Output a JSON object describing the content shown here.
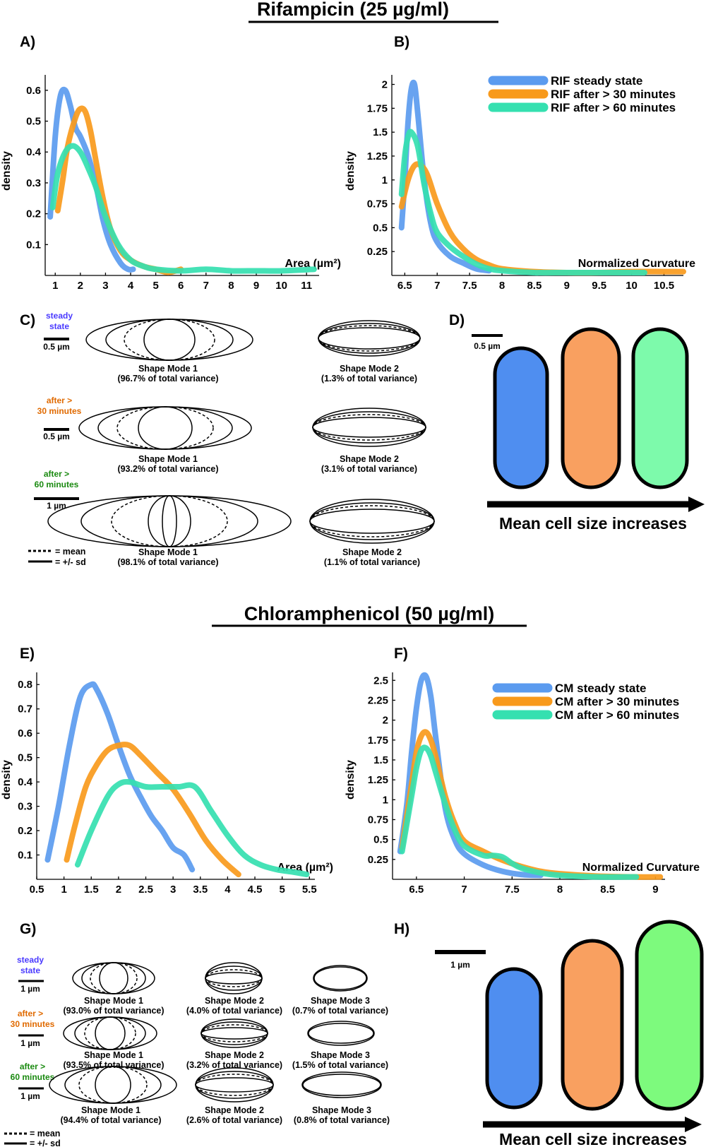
{
  "sections": [
    {
      "title": "Rifampicin (25 µg/ml)"
    },
    {
      "title": "Chloramphenicol (50 µg/ml)"
    }
  ],
  "colors": {
    "steady": "#5b9bef",
    "after30": "#f89a1c",
    "after60": "#35e0b0",
    "cell_steady": "#4f8ef0",
    "cell_after30": "#f9a060",
    "cell_after60_rif": "#7dfaab",
    "cell_after60_cm": "#7dfa7d"
  },
  "chart_data": [
    {
      "panel": "A)",
      "type": "line",
      "xlabel": "Area (µm²)",
      "ylabel": "density",
      "xlim": [
        0.6,
        11.5
      ],
      "ylim": [
        0,
        0.65
      ],
      "xticks": [
        "1",
        "2",
        "3",
        "4",
        "5",
        "6",
        "7",
        "8",
        "9",
        "10",
        "11"
      ],
      "yticks": [
        "0.1",
        "0.2",
        "0.3",
        "0.4",
        "0.5",
        "0.6"
      ],
      "series": [
        {
          "key": "steady",
          "x": [
            0.8,
            1.0,
            1.2,
            1.4,
            1.6,
            1.8,
            2.0,
            2.3,
            2.6,
            2.9,
            3.2,
            3.6,
            3.9,
            4.1
          ],
          "values": [
            0.19,
            0.45,
            0.58,
            0.6,
            0.55,
            0.48,
            0.45,
            0.39,
            0.3,
            0.18,
            0.1,
            0.04,
            0.02,
            0.02
          ]
        },
        {
          "key": "after30",
          "x": [
            1.1,
            1.3,
            1.5,
            1.8,
            2.0,
            2.2,
            2.4,
            2.6,
            2.9,
            3.2,
            3.6,
            4.0,
            4.5,
            5.0,
            5.5,
            6.0
          ],
          "values": [
            0.21,
            0.31,
            0.42,
            0.51,
            0.54,
            0.53,
            0.47,
            0.38,
            0.25,
            0.15,
            0.08,
            0.05,
            0.03,
            0.02,
            0.01,
            0.02
          ]
        },
        {
          "key": "after60",
          "x": [
            0.9,
            1.1,
            1.4,
            1.7,
            2.0,
            2.3,
            2.6,
            3.0,
            3.5,
            4.0,
            4.5,
            5.0,
            6.0,
            7.0,
            8.0,
            9.0,
            10.0,
            11.3
          ],
          "values": [
            0.22,
            0.33,
            0.4,
            0.42,
            0.4,
            0.35,
            0.29,
            0.19,
            0.1,
            0.05,
            0.03,
            0.02,
            0.015,
            0.02,
            0.015,
            0.015,
            0.015,
            0.02
          ]
        }
      ]
    },
    {
      "panel": "B)",
      "type": "line",
      "xlabel": "Normalized Curvature",
      "ylabel": "density",
      "xlim": [
        6.3,
        10.8
      ],
      "ylim": [
        0,
        2.1
      ],
      "xticks": [
        "6.5",
        "7",
        "7.5",
        "8",
        "8.5",
        "9",
        "9.5",
        "10",
        "10.5"
      ],
      "yticks": [
        "0.25",
        "0.5",
        "0.75",
        "1",
        "1.25",
        "1.5",
        "1.75",
        "2"
      ],
      "legend": [
        "RIF steady state",
        "RIF after > 30 minutes",
        "RIF after > 60 minutes"
      ],
      "series": [
        {
          "key": "steady",
          "name": "RIF steady state",
          "x": [
            6.45,
            6.5,
            6.55,
            6.6,
            6.65,
            6.7,
            6.8,
            6.9,
            7.0,
            7.2,
            7.4,
            7.6,
            7.8
          ],
          "values": [
            0.5,
            1.0,
            1.6,
            1.95,
            2.0,
            1.7,
            1.0,
            0.55,
            0.35,
            0.2,
            0.13,
            0.07,
            0.05
          ]
        },
        {
          "key": "after30",
          "name": "RIF after > 30 minutes",
          "x": [
            6.45,
            6.55,
            6.65,
            6.75,
            6.85,
            7.0,
            7.2,
            7.4,
            7.6,
            7.8,
            8.0,
            8.5,
            9.0,
            9.5,
            10.0,
            10.5,
            10.8
          ],
          "values": [
            0.72,
            1.0,
            1.15,
            1.15,
            1.05,
            0.75,
            0.45,
            0.28,
            0.17,
            0.11,
            0.07,
            0.04,
            0.03,
            0.03,
            0.04,
            0.04,
            0.04
          ]
        },
        {
          "key": "after60",
          "name": "RIF after > 60 minutes",
          "x": [
            6.45,
            6.5,
            6.55,
            6.6,
            6.7,
            6.8,
            6.9,
            7.0,
            7.2,
            7.4,
            7.6,
            7.8,
            8.0,
            8.5,
            9.0,
            9.5,
            10.2
          ],
          "values": [
            0.85,
            1.25,
            1.45,
            1.5,
            1.35,
            0.95,
            0.65,
            0.45,
            0.3,
            0.2,
            0.12,
            0.07,
            0.05,
            0.03,
            0.03,
            0.03,
            0.03
          ]
        }
      ]
    },
    {
      "panel": "E)",
      "type": "line",
      "xlabel": "Area (µm²)",
      "ylabel": "density",
      "xlim": [
        0.5,
        5.6
      ],
      "ylim": [
        0,
        0.85
      ],
      "xticks": [
        "0.5",
        "1",
        "1.5",
        "2",
        "2.5",
        "3",
        "3.5",
        "4",
        "4.5",
        "5",
        "5.5"
      ],
      "yticks": [
        "0.1",
        "0.2",
        "0.3",
        "0.4",
        "0.5",
        "0.6",
        "0.7",
        "0.8"
      ],
      "series": [
        {
          "key": "steady",
          "x": [
            0.7,
            0.9,
            1.1,
            1.3,
            1.5,
            1.6,
            1.8,
            2.0,
            2.2,
            2.4,
            2.6,
            2.8,
            3.0,
            3.2,
            3.35
          ],
          "values": [
            0.08,
            0.3,
            0.55,
            0.75,
            0.8,
            0.78,
            0.68,
            0.55,
            0.43,
            0.34,
            0.26,
            0.2,
            0.13,
            0.1,
            0.04
          ]
        },
        {
          "key": "after30",
          "x": [
            1.05,
            1.2,
            1.4,
            1.6,
            1.8,
            2.0,
            2.2,
            2.4,
            2.7,
            3.0,
            3.3,
            3.6,
            3.9,
            4.2
          ],
          "values": [
            0.08,
            0.22,
            0.38,
            0.47,
            0.53,
            0.55,
            0.55,
            0.51,
            0.44,
            0.37,
            0.27,
            0.16,
            0.08,
            0.02
          ]
        },
        {
          "key": "after60",
          "x": [
            1.25,
            1.5,
            1.8,
            2.0,
            2.2,
            2.5,
            2.8,
            3.1,
            3.4,
            3.7,
            4.0,
            4.3,
            4.6,
            4.9,
            5.2,
            5.45
          ],
          "values": [
            0.06,
            0.2,
            0.34,
            0.39,
            0.4,
            0.38,
            0.38,
            0.38,
            0.38,
            0.28,
            0.18,
            0.1,
            0.06,
            0.04,
            0.03,
            0.02
          ]
        }
      ]
    },
    {
      "panel": "F)",
      "type": "line",
      "xlabel": "Normalized Curvature",
      "ylabel": "density",
      "xlim": [
        6.25,
        9.1
      ],
      "ylim": [
        0,
        2.6
      ],
      "xticks": [
        "6.5",
        "7",
        "7.5",
        "8",
        "8.5",
        "9"
      ],
      "yticks": [
        "0.25",
        "0.5",
        "0.75",
        "1",
        "1.25",
        "1.5",
        "1.75",
        "2",
        "2.25",
        "2.5"
      ],
      "legend": [
        "CM steady state",
        "CM after > 30 minutes",
        "CM after > 60 minutes"
      ],
      "series": [
        {
          "key": "steady",
          "name": "CM steady state",
          "x": [
            6.33,
            6.4,
            6.45,
            6.5,
            6.55,
            6.6,
            6.65,
            6.7,
            6.8,
            6.9,
            7.0,
            7.2,
            7.4,
            7.6,
            7.8
          ],
          "values": [
            0.35,
            0.95,
            1.6,
            2.15,
            2.5,
            2.55,
            2.3,
            1.8,
            0.9,
            0.5,
            0.32,
            0.18,
            0.1,
            0.06,
            0.05
          ]
        },
        {
          "key": "after30",
          "name": "CM after > 30 minutes",
          "x": [
            6.35,
            6.45,
            6.5,
            6.55,
            6.6,
            6.65,
            6.7,
            6.8,
            6.9,
            7.0,
            7.2,
            7.4,
            7.6,
            7.8,
            8.0,
            8.4,
            8.8,
            9.05
          ],
          "values": [
            0.4,
            1.2,
            1.6,
            1.8,
            1.85,
            1.75,
            1.55,
            1.05,
            0.7,
            0.48,
            0.35,
            0.24,
            0.16,
            0.1,
            0.07,
            0.04,
            0.03,
            0.03
          ]
        },
        {
          "key": "after60",
          "name": "CM after > 60 minutes",
          "x": [
            6.35,
            6.45,
            6.5,
            6.55,
            6.6,
            6.65,
            6.7,
            6.8,
            6.9,
            7.0,
            7.2,
            7.3,
            7.4,
            7.5,
            7.6,
            7.8,
            8.0,
            8.4,
            8.8
          ],
          "values": [
            0.35,
            1.05,
            1.4,
            1.62,
            1.65,
            1.55,
            1.35,
            0.95,
            0.62,
            0.42,
            0.3,
            0.3,
            0.28,
            0.2,
            0.14,
            0.08,
            0.05,
            0.03,
            0.03
          ]
        }
      ]
    }
  ],
  "panel_C": {
    "letter": "C)",
    "rows": [
      {
        "label_lines": [
          "steady",
          "state"
        ],
        "scale": "0.5 µm",
        "mode1": "Shape Mode 1",
        "mode1_var": "(96.7% of total variance)",
        "mode2": "Shape Mode 2",
        "mode2_var": "(1.3% of total variance)"
      },
      {
        "label_lines": [
          "after >",
          "30 minutes"
        ],
        "scale": "0.5 µm",
        "mode1": "Shape Mode 1",
        "mode1_var": "(93.2% of total variance)",
        "mode2": "Shape Mode 2",
        "mode2_var": "(3.1% of total variance)"
      },
      {
        "label_lines": [
          "after >",
          "60 minutes"
        ],
        "scale": "1 µm",
        "mode1": "Shape Mode 1",
        "mode1_var": "(98.1% of total variance)",
        "mode2": "Shape Mode 2",
        "mode2_var": "(1.1% of total variance)"
      }
    ],
    "key_mean": "= mean",
    "key_sd": "=  +/- sd"
  },
  "panel_D": {
    "letter": "D)",
    "scale": "0.5 µm",
    "arrow_label": "Mean cell size increases"
  },
  "panel_G": {
    "letter": "G)",
    "rows": [
      {
        "label_lines": [
          "steady",
          "state"
        ],
        "scale": "1 µm",
        "modes": [
          {
            "name": "Shape Mode 1",
            "var": "(93.0% of total variance)"
          },
          {
            "name": "Shape Mode 2",
            "var": "(4.0% of total variance)"
          },
          {
            "name": "Shape Mode 3",
            "var": "(0.7% of total variance)"
          }
        ]
      },
      {
        "label_lines": [
          "after >",
          "30 minutes"
        ],
        "scale": "1 µm",
        "modes": [
          {
            "name": "Shape Mode 1",
            "var": "(93.5% of total variance)"
          },
          {
            "name": "Shape Mode 2",
            "var": "(3.2% of total variance)"
          },
          {
            "name": "Shape Mode 3",
            "var": "(1.5% of total variance)"
          }
        ]
      },
      {
        "label_lines": [
          "after >",
          "60 minutes"
        ],
        "scale": "1 µm",
        "modes": [
          {
            "name": "Shape Mode 1",
            "var": "(94.4% of total variance)"
          },
          {
            "name": "Shape Mode 2",
            "var": "(2.6% of total variance)"
          },
          {
            "name": "Shape Mode 3",
            "var": "(0.8% of total variance)"
          }
        ]
      }
    ],
    "key_mean": "= mean",
    "key_sd": "= +/- sd"
  },
  "panel_H": {
    "letter": "H)",
    "scale": "1 µm",
    "arrow_label": "Mean cell size increases"
  }
}
